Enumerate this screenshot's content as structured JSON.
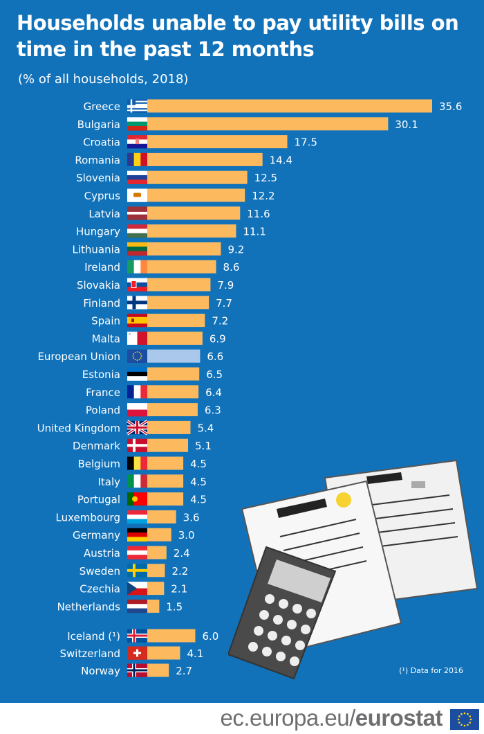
{
  "title": "Households unable to pay utility bills on time in the past 12 months",
  "subtitle": "(% of all households, 2018)",
  "note": "(¹) Data for 2016",
  "footer": {
    "url_plain": "ec.europa.eu/",
    "url_bold": "eurostat"
  },
  "colors": {
    "background": "#1172ba",
    "bar": "#fdb95e",
    "eu_bar": "#a9c8ec",
    "text": "#ffffff"
  },
  "chart_data": {
    "type": "bar",
    "orientation": "horizontal",
    "title": "Households unable to pay utility bills on time in the past 12 months",
    "subtitle": "(% of all households, 2018)",
    "xlim": [
      0,
      36
    ],
    "grid": false,
    "data_labels": true,
    "categories": [
      "Greece",
      "Bulgaria",
      "Croatia",
      "Romania",
      "Slovenia",
      "Cyprus",
      "Latvia",
      "Hungary",
      "Lithuania",
      "Ireland",
      "Slovakia",
      "Finland",
      "Spain",
      "Malta",
      "European Union",
      "Estonia",
      "France",
      "Poland",
      "United Kingdom",
      "Denmark",
      "Belgium",
      "Italy",
      "Portugal",
      "Luxembourg",
      "Germany",
      "Austria",
      "Sweden",
      "Czechia",
      "Netherlands",
      "Iceland (¹)",
      "Switzerland",
      "Norway"
    ],
    "values": [
      35.6,
      30.1,
      17.5,
      14.4,
      12.5,
      12.2,
      11.6,
      11.1,
      9.2,
      8.6,
      7.9,
      7.7,
      7.2,
      6.9,
      6.6,
      6.5,
      6.4,
      6.3,
      5.4,
      5.1,
      4.5,
      4.5,
      4.5,
      3.6,
      3.0,
      2.4,
      2.2,
      2.1,
      1.5,
      6.0,
      4.1,
      2.7
    ],
    "labels": [
      "35.6",
      "30.1",
      "17.5",
      "14.4",
      "12.5",
      "12.2",
      "11.6",
      "11.1",
      "9.2",
      "8.6",
      "7.9",
      "7.7",
      "7.2",
      "6.9",
      "6.6",
      "6.5",
      "6.4",
      "6.3",
      "5.4",
      "5.1",
      "4.5",
      "4.5",
      "4.5",
      "3.6",
      "3.0",
      "2.4",
      "2.2",
      "2.1",
      "1.5",
      "6.0",
      "4.1",
      "2.7"
    ],
    "flags": [
      "gr-flag-icon",
      "bg-flag-icon",
      "hr-flag-icon",
      "ro-flag-icon",
      "si-flag-icon",
      "cy-flag-icon",
      "lv-flag-icon",
      "hu-flag-icon",
      "lt-flag-icon",
      "ie-flag-icon",
      "sk-flag-icon",
      "fi-flag-icon",
      "es-flag-icon",
      "mt-flag-icon",
      "eu-flag-icon",
      "ee-flag-icon",
      "fr-flag-icon",
      "pl-flag-icon",
      "uk-flag-icon",
      "dk-flag-icon",
      "be-flag-icon",
      "it-flag-icon",
      "pt-flag-icon",
      "lu-flag-icon",
      "de-flag-icon",
      "at-flag-icon",
      "se-flag-icon",
      "cz-flag-icon",
      "nl-flag-icon",
      "is-flag-icon",
      "ch-flag-icon",
      "no-flag-icon"
    ],
    "highlight": "European Union"
  }
}
